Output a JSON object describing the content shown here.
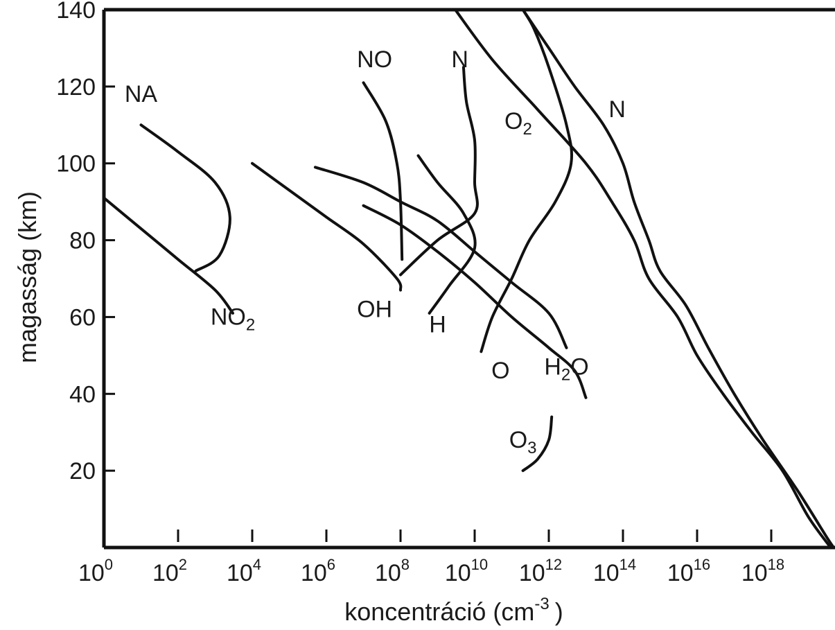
{
  "chart_data": {
    "type": "line",
    "title": "",
    "xlabel": "koncentráció (cm",
    "xlabel_sup": "-3",
    "xlabel_close": ")",
    "ylabel": "magasság (km)",
    "xscale": "log",
    "xlim": [
      1,
      1e+19
    ],
    "ylim": [
      0,
      140
    ],
    "grid": false,
    "x_ticks": [
      {
        "base": "10",
        "exp": "0"
      },
      {
        "base": "10",
        "exp": "2"
      },
      {
        "base": "10",
        "exp": "4"
      },
      {
        "base": "10",
        "exp": "6"
      },
      {
        "base": "10",
        "exp": "8"
      },
      {
        "base": "10",
        "exp": "10"
      },
      {
        "base": "10",
        "exp": "12"
      },
      {
        "base": "10",
        "exp": "14"
      },
      {
        "base": "10",
        "exp": "16"
      },
      {
        "base": "10",
        "exp": "18"
      }
    ],
    "y_ticks": [
      "20",
      "40",
      "60",
      "80",
      "100",
      "120",
      "140"
    ],
    "series": [
      {
        "key": "na",
        "name": "NA",
        "points": [
          [
            10.0,
            110
          ],
          [
            100.0,
            103
          ],
          [
            1000.0,
            95
          ],
          [
            2500.0,
            86
          ],
          [
            1300.0,
            76
          ],
          [
            300.0,
            72
          ]
        ]
      },
      {
        "key": "no2",
        "name": "NO2",
        "points": [
          [
            1.0,
            91
          ],
          [
            10.0,
            83
          ],
          [
            100.0,
            75
          ],
          [
            1000.0,
            67
          ],
          [
            3000.0,
            61
          ]
        ]
      },
      {
        "key": "oh",
        "name": "OH",
        "points": [
          [
            10000.0,
            100
          ],
          [
            100000.0,
            93
          ],
          [
            1000000.0,
            86
          ],
          [
            10000000.0,
            79
          ],
          [
            80000000.0,
            70
          ],
          [
            100000000.0,
            67
          ]
        ]
      },
      {
        "key": "no",
        "name": "NO",
        "points": [
          [
            10000000.0,
            121
          ],
          [
            40000000.0,
            111
          ],
          [
            80000000.0,
            100
          ],
          [
            100000000.0,
            90
          ],
          [
            110000000.0,
            75
          ]
        ]
      },
      {
        "key": "n_minor",
        "name": "N",
        "points": [
          [
            5000000000.0,
            125
          ],
          [
            6000000000.0,
            116
          ],
          [
            10000000000.0,
            106
          ],
          [
            10000000000.0,
            95
          ],
          [
            10000000000.0,
            87
          ],
          [
            1000000000.0,
            80
          ],
          [
            100000000.0,
            71
          ]
        ]
      },
      {
        "key": "h",
        "name": "H",
        "points": [
          [
            300000000.0,
            102
          ],
          [
            1000000000.0,
            95
          ],
          [
            5000000000.0,
            87
          ],
          [
            10000000000.0,
            78
          ],
          [
            2000000000.0,
            68
          ],
          [
            600000000.0,
            61
          ]
        ]
      },
      {
        "key": "h2o",
        "name": "H2O",
        "points": [
          [
            500000.0,
            99
          ],
          [
            10000000.0,
            95
          ],
          [
            100000000.0,
            90
          ],
          [
            1000000000.0,
            85
          ],
          [
            10000000000.0,
            77
          ],
          [
            100000000000.0,
            69
          ],
          [
            1000000000000.0,
            61
          ],
          [
            3000000000000.0,
            52
          ]
        ]
      },
      {
        "key": "o3",
        "name": "O3",
        "points": [
          [
            10000000.0,
            89
          ],
          [
            100000000.0,
            84
          ],
          [
            1000000000.0,
            77
          ],
          [
            10000000000.0,
            69
          ],
          [
            100000000000.0,
            60
          ],
          [
            1000000000000.0,
            52
          ],
          [
            5000000000000.0,
            46
          ],
          [
            10000000000000.0,
            39
          ]
        ]
      },
      {
        "key": "o3_lower",
        "name": "",
        "points": [
          [
            1200000000000.0,
            34
          ],
          [
            1000000000000.0,
            28
          ],
          [
            500000000000.0,
            23
          ],
          [
            200000000000.0,
            20
          ]
        ]
      },
      {
        "key": "o",
        "name": "O",
        "points": [
          [
            15000000000.0,
            51
          ],
          [
            30000000000.0,
            60
          ],
          [
            100000000000.0,
            70
          ],
          [
            300000000000.0,
            80
          ],
          [
            1500000000000.0,
            90
          ],
          [
            4000000000000.0,
            100
          ],
          [
            3000000000000.0,
            110
          ],
          [
            1000000000000.0,
            125
          ],
          [
            400000000000.0,
            135
          ],
          [
            200000000000.0,
            140
          ]
        ]
      },
      {
        "key": "o2",
        "name": "O2",
        "points": [
          [
            3000000000.0,
            140
          ],
          [
            30000000000.0,
            127
          ],
          [
            500000000000.0,
            114
          ],
          [
            10000000000000.0,
            100
          ],
          [
            50000000000000.0,
            90
          ],
          [
            200000000000000.0,
            80
          ],
          [
            500000000000000.0,
            70
          ],
          [
            3000000000000000.0,
            60
          ],
          [
            1e+16,
            50
          ],
          [
            5e+16,
            40
          ],
          [
            3e+17,
            30
          ],
          [
            2e+18,
            20
          ],
          [
            1e+19,
            8
          ],
          [
            4e+19,
            0
          ]
        ]
      },
      {
        "key": "n2",
        "name": "N",
        "points": [
          [
            200000000000.0,
            140
          ],
          [
            1000000000000.0,
            130
          ],
          [
            5000000000000.0,
            120
          ],
          [
            30000000000000.0,
            110
          ],
          [
            100000000000000.0,
            100
          ],
          [
            200000000000000.0,
            90
          ],
          [
            500000000000000.0,
            80
          ],
          [
            1000000000000000.0,
            72
          ],
          [
            5000000000000000.0,
            63
          ],
          [
            2e+16,
            52
          ],
          [
            1e+17,
            40
          ],
          [
            6e+17,
            28
          ],
          [
            5e+18,
            15
          ],
          [
            3e+19,
            3
          ],
          [
            6e+19,
            0
          ]
        ]
      }
    ],
    "annotations": [
      {
        "series": "na",
        "text": "NA",
        "at": [
          10.0,
          116
        ]
      },
      {
        "series": "no2",
        "text": "NO",
        "sub": "2",
        "at": [
          3000.0,
          58
        ]
      },
      {
        "series": "no",
        "text": "NO",
        "at": [
          20000000.0,
          125
        ]
      },
      {
        "series": "n_minor",
        "text": "N",
        "at": [
          4000000000.0,
          125
        ]
      },
      {
        "series": "o2",
        "text": "O",
        "sub": "2",
        "at": [
          150000000000.0,
          109
        ]
      },
      {
        "series": "n2",
        "text": "N",
        "at": [
          70000000000000.0,
          112
        ]
      },
      {
        "series": "oh",
        "text": "OH",
        "at": [
          20000000.0,
          60
        ]
      },
      {
        "series": "h",
        "text": "H",
        "at": [
          1000000000.0,
          56
        ]
      },
      {
        "series": "o",
        "text": "O",
        "at": [
          50000000000.0,
          44
        ]
      },
      {
        "series": "h2o",
        "text": "H",
        "sub": "2",
        "tail": "O",
        "at": [
          3000000000000.0,
          45
        ]
      },
      {
        "series": "o3",
        "text": "O",
        "sub": "3",
        "at": [
          200000000000.0,
          26
        ]
      }
    ]
  }
}
